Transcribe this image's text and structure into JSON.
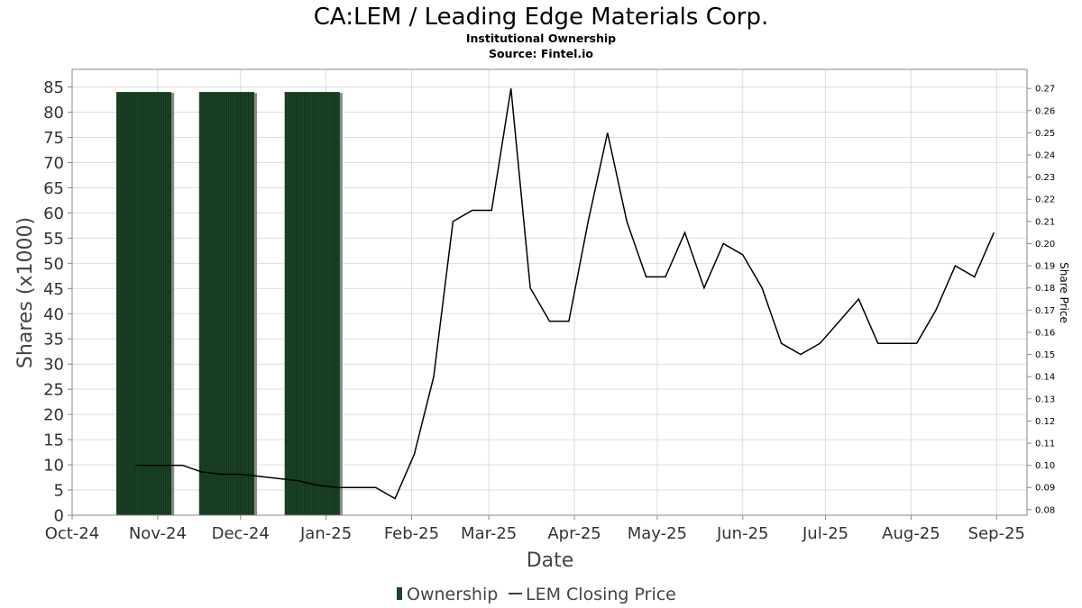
{
  "header": {
    "title": "CA:LEM / Leading Edge Materials Corp.",
    "subtitle": "Institutional Ownership",
    "source": "Source: Fintel.io"
  },
  "legend": {
    "ownership_label": "Ownership",
    "price_label": "LEM Closing Price"
  },
  "colors": {
    "bar_fill": "#1b4526",
    "bar_stripe": "#0f2d17",
    "bar_shadow": "#8a8a8a",
    "price_line": "#000000",
    "grid": "#dddddd"
  },
  "chart_data": {
    "type": "bar",
    "title": "CA:LEM / Leading Edge Materials Corp.",
    "xlabel": "Date",
    "ylabel": "Shares (x1000)",
    "y2label": "Share Price",
    "xlim": [
      "2024-10-01",
      "2025-09-12"
    ],
    "ylim": [
      0,
      88.5
    ],
    "y2lim": [
      0.0775,
      0.2786
    ],
    "x_ticks": [
      "2024-10-01",
      "2024-11-01",
      "2024-12-01",
      "2025-01-01",
      "2025-02-01",
      "2025-03-01",
      "2025-04-01",
      "2025-05-01",
      "2025-06-01",
      "2025-07-01",
      "2025-08-01",
      "2025-09-01"
    ],
    "x_tick_labels": [
      "Oct-24",
      "Nov-24",
      "Dec-24",
      "Jan-25",
      "Feb-25",
      "Mar-25",
      "Apr-25",
      "May-25",
      "Jun-25",
      "Jul-25",
      "Aug-25",
      "Sep-25"
    ],
    "y_ticks": [
      0,
      5,
      10,
      15,
      20,
      25,
      30,
      35,
      40,
      45,
      50,
      55,
      60,
      65,
      70,
      75,
      80,
      85
    ],
    "y2_ticks": [
      "0.08",
      "0.09",
      "0.10",
      "0.11",
      "0.12",
      "0.13",
      "0.14",
      "0.15",
      "0.16",
      "0.17",
      "0.18",
      "0.19",
      "0.20",
      "0.21",
      "0.22",
      "0.23",
      "0.24",
      "0.25",
      "0.26",
      "0.27"
    ],
    "grid": true,
    "legend_position": "bottom-center",
    "ownership_bars": [
      {
        "start": "2024-10-17",
        "end": "2024-11-06",
        "value": 84
      },
      {
        "start": "2024-11-16",
        "end": "2024-12-06",
        "value": 84
      },
      {
        "start": "2024-12-17",
        "end": "2025-01-06",
        "value": 84
      }
    ],
    "price_series": {
      "name": "LEM Closing Price",
      "points": [
        [
          "2024-10-24",
          0.1
        ],
        [
          "2024-11-03",
          0.1
        ],
        [
          "2024-11-10",
          0.1
        ],
        [
          "2024-11-17",
          0.097
        ],
        [
          "2024-11-24",
          0.096
        ],
        [
          "2024-12-01",
          0.096
        ],
        [
          "2024-12-08",
          0.095
        ],
        [
          "2024-12-15",
          0.094
        ],
        [
          "2024-12-22",
          0.093
        ],
        [
          "2024-12-29",
          0.091
        ],
        [
          "2025-01-05",
          0.09
        ],
        [
          "2025-01-12",
          0.09
        ],
        [
          "2025-01-19",
          0.09
        ],
        [
          "2025-01-26",
          0.085
        ],
        [
          "2025-02-02",
          0.105
        ],
        [
          "2025-02-09",
          0.14
        ],
        [
          "2025-02-16",
          0.21
        ],
        [
          "2025-02-23",
          0.215
        ],
        [
          "2025-03-02",
          0.215
        ],
        [
          "2025-03-09",
          0.27
        ],
        [
          "2025-03-16",
          0.18
        ],
        [
          "2025-03-23",
          0.165
        ],
        [
          "2025-03-30",
          0.165
        ],
        [
          "2025-04-06",
          0.21
        ],
        [
          "2025-04-13",
          0.25
        ],
        [
          "2025-04-20",
          0.21
        ],
        [
          "2025-04-27",
          0.185
        ],
        [
          "2025-05-04",
          0.185
        ],
        [
          "2025-05-11",
          0.205
        ],
        [
          "2025-05-18",
          0.18
        ],
        [
          "2025-05-25",
          0.2
        ],
        [
          "2025-06-01",
          0.195
        ],
        [
          "2025-06-08",
          0.18
        ],
        [
          "2025-06-15",
          0.155
        ],
        [
          "2025-06-22",
          0.15
        ],
        [
          "2025-06-29",
          0.155
        ],
        [
          "2025-07-06",
          0.165
        ],
        [
          "2025-07-13",
          0.175
        ],
        [
          "2025-07-20",
          0.155
        ],
        [
          "2025-07-27",
          0.155
        ],
        [
          "2025-08-03",
          0.155
        ],
        [
          "2025-08-10",
          0.17
        ],
        [
          "2025-08-17",
          0.19
        ],
        [
          "2025-08-24",
          0.185
        ],
        [
          "2025-08-31",
          0.205
        ]
      ]
    }
  }
}
